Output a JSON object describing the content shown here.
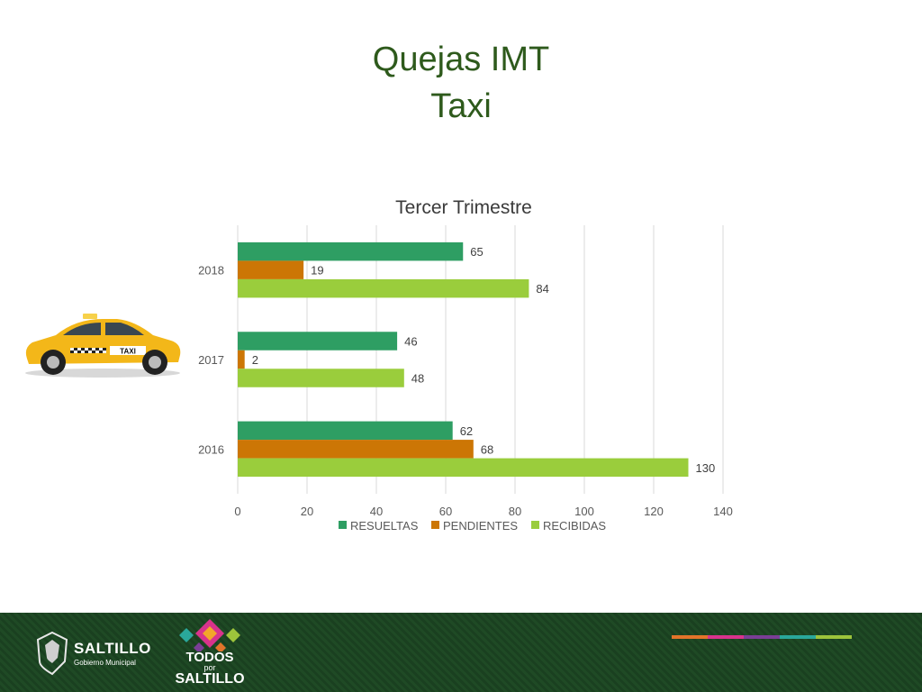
{
  "slide": {
    "title_line1": "Quejas IMT",
    "title_line2": "Taxi"
  },
  "colors": {
    "resueltas": "#2e9e63",
    "pendientes": "#cc7605",
    "recibidas": "#9acd3c",
    "title_green": "#2e5a1c",
    "footer_green": "#1f4a25"
  },
  "chart_data": {
    "type": "bar",
    "orientation": "horizontal",
    "title": "Tercer Trimestre",
    "categories": [
      "2018",
      "2017",
      "2016"
    ],
    "series": [
      {
        "name": "RESUELTAS",
        "values": [
          65,
          46,
          62
        ]
      },
      {
        "name": "PENDIENTES",
        "values": [
          19,
          2,
          68
        ]
      },
      {
        "name": "RECIBIDAS",
        "values": [
          84,
          48,
          130
        ]
      }
    ],
    "xlim": [
      0,
      140
    ],
    "xticks": [
      0,
      20,
      40,
      60,
      80,
      100,
      120,
      140
    ],
    "grid": true,
    "legend": "bottom",
    "data_labels": true
  },
  "taxi": {
    "sign": "TAXI",
    "icon": "taxi-car-icon"
  },
  "footer": {
    "gov_name": "SALTILLO",
    "gov_sub": "Gobierno Municipal",
    "campaign_line1": "TODOS",
    "campaign_line2": "por",
    "campaign_line3": "SALTILLO",
    "stripe_colors": [
      "#e2742a",
      "#d8338c",
      "#7a3e96",
      "#2aa79b",
      "#9dc43b"
    ]
  }
}
